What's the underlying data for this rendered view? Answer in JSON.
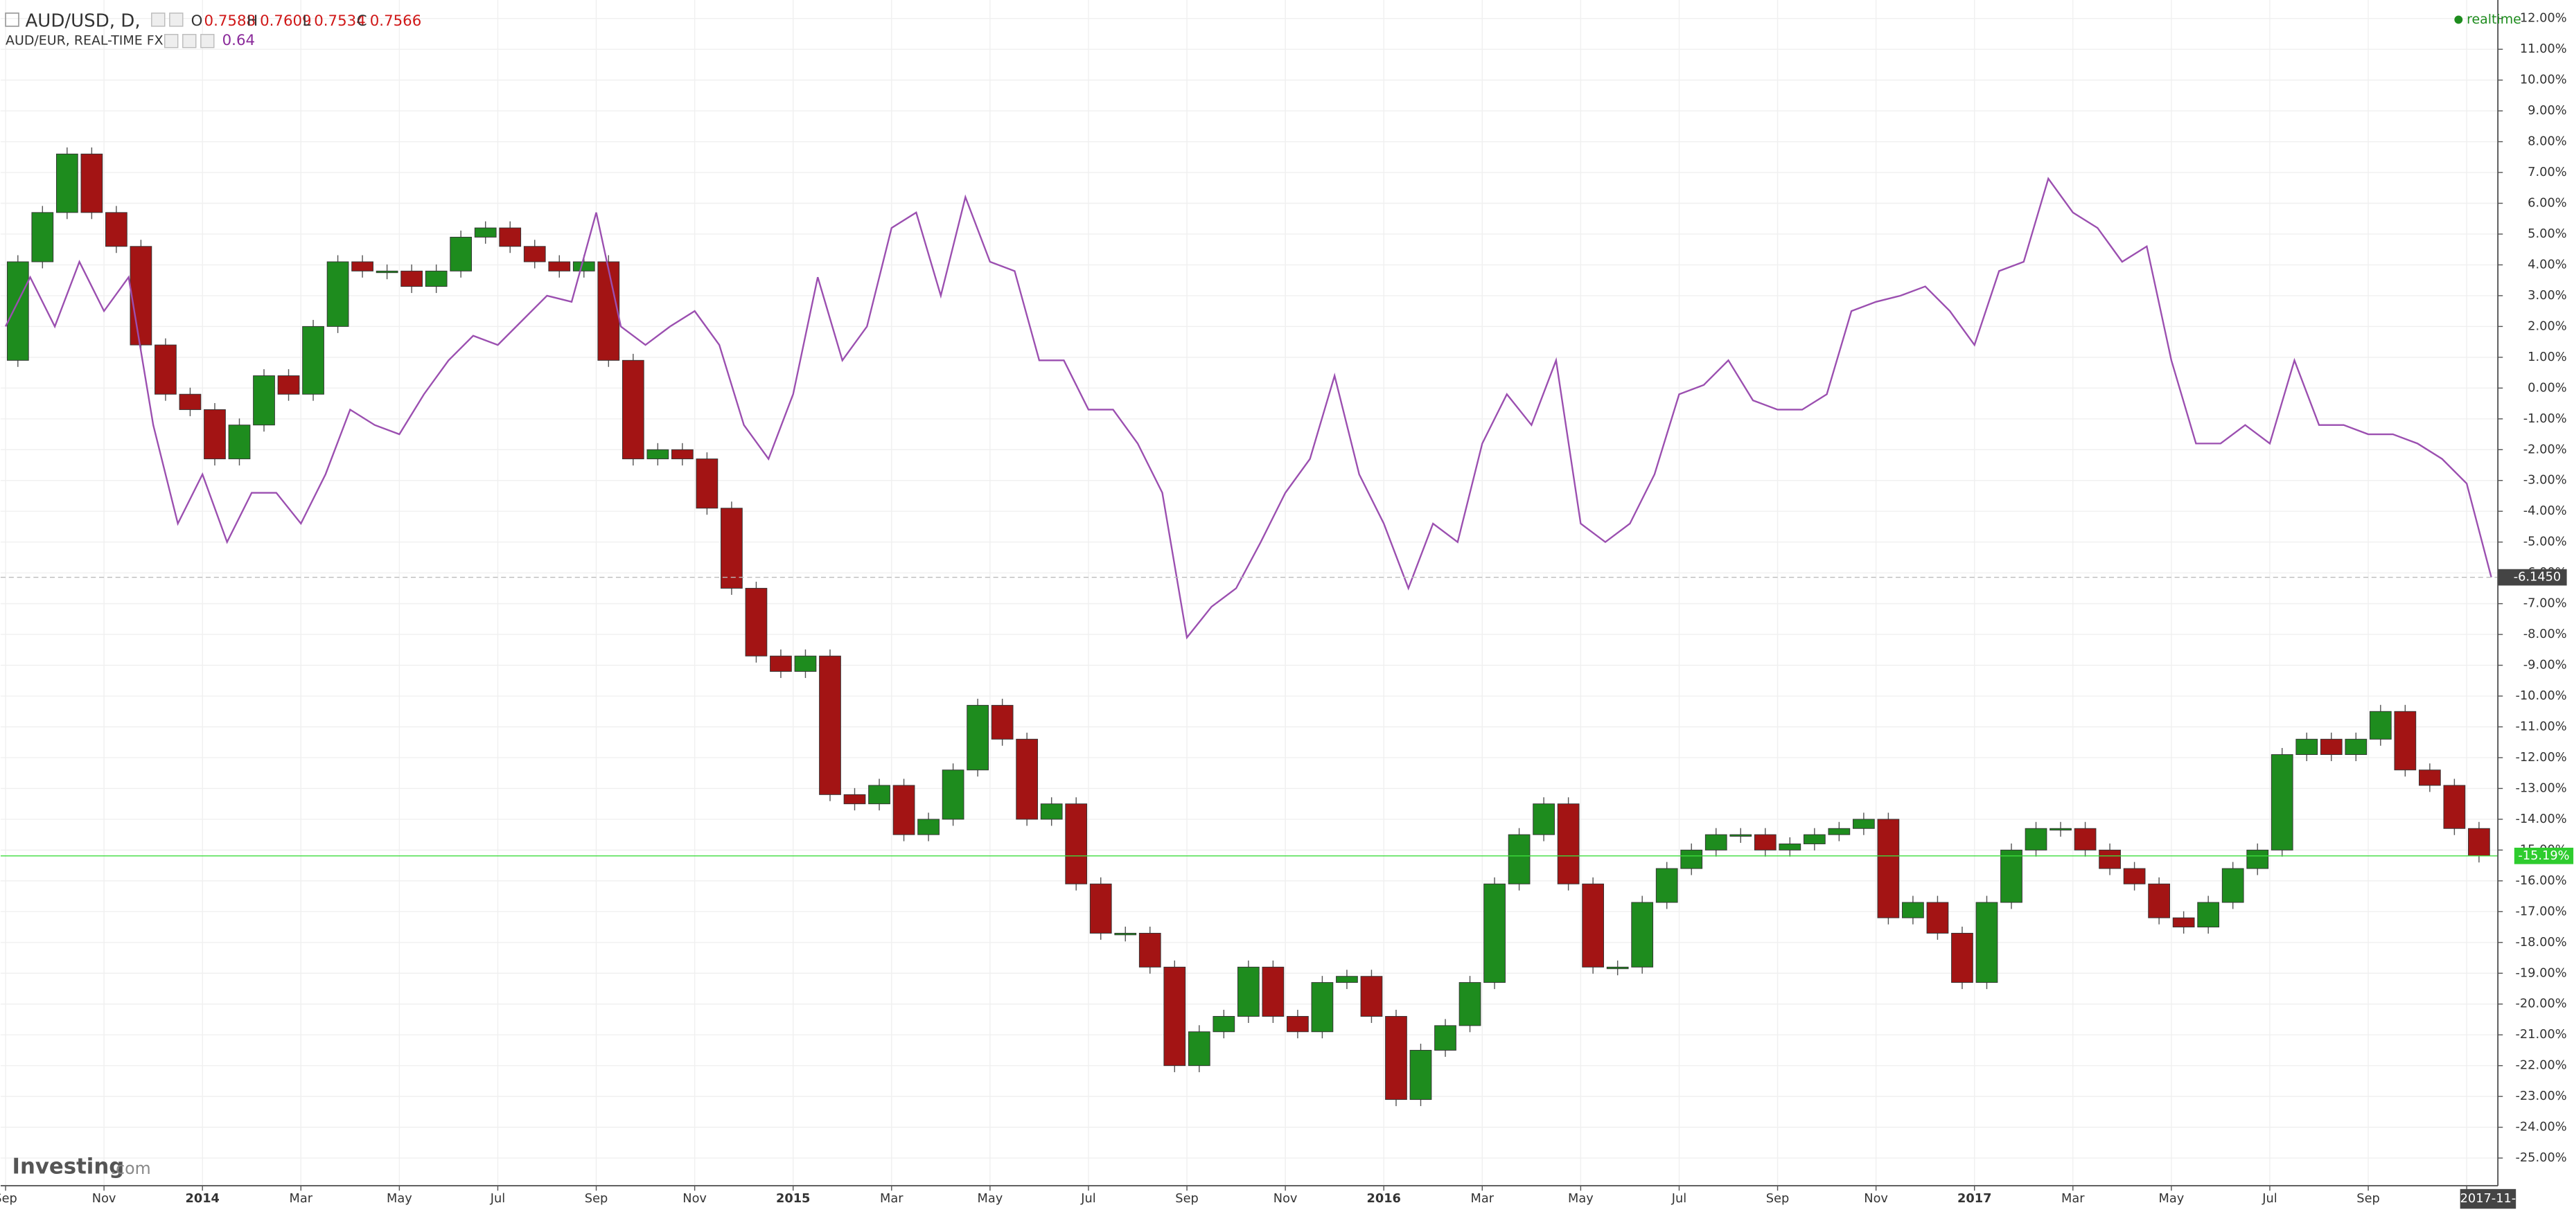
{
  "chart_data": {
    "type": "comparison",
    "header": {
      "symbol": "AUD/USD, D,",
      "o_label": "O",
      "o": 0.7588,
      "h_label": "H",
      "h": 0.7609,
      "l_label": "L",
      "l": 0.7534,
      "c_label": "C",
      "c": 0.7566,
      "compare": "AUD/EUR, REAL-TIME FX",
      "compare_value": 0.64,
      "status": "realtime",
      "logo": "Investing",
      "logo_suffix": ".com"
    },
    "categories": [
      "Sep",
      null,
      null,
      null,
      "Nov",
      null,
      null,
      null,
      "2014",
      null,
      null,
      null,
      "Mar",
      null,
      null,
      null,
      "May",
      null,
      null,
      null,
      "Jul",
      null,
      null,
      null,
      "Sep",
      null,
      null,
      null,
      "Nov",
      null,
      null,
      null,
      "2015",
      null,
      null,
      null,
      "Mar",
      null,
      null,
      null,
      "May",
      null,
      null,
      null,
      "Jul",
      null,
      null,
      null,
      "Sep",
      null,
      null,
      null,
      "Nov",
      null,
      null,
      null,
      "2016",
      null,
      null,
      null,
      "Mar",
      null,
      null,
      null,
      "May",
      null,
      null,
      null,
      "Jul",
      null,
      null,
      null,
      "Sep",
      null,
      null,
      null,
      "Nov",
      null,
      null,
      null,
      "2017",
      null,
      null,
      null,
      "Mar",
      null,
      null,
      null,
      "May",
      null,
      null,
      null,
      "Jul",
      null,
      null,
      null,
      "Sep",
      null,
      null,
      null,
      "2017-11-",
      null
    ],
    "series": [
      {
        "name": "AUD/USD",
        "color": "#1e8c1e",
        "down_color": "#a31414",
        "value_label": "-15.19%",
        "values": [
          0.9,
          4.1,
          5.7,
          7.6,
          5.7,
          4.6,
          1.4,
          -0.2,
          -0.7,
          -2.3,
          -1.2,
          0.4,
          -0.2,
          2.0,
          4.1,
          3.8,
          3.8,
          3.3,
          3.8,
          4.9,
          5.2,
          4.6,
          4.1,
          3.8,
          4.1,
          0.9,
          -2.3,
          -2.0,
          -2.3,
          -3.9,
          -6.5,
          -8.7,
          -9.2,
          -8.7,
          -13.2,
          -13.5,
          -12.9,
          -14.5,
          -14.0,
          -12.4,
          -10.3,
          -11.4,
          -14.0,
          -13.5,
          -16.1,
          -17.7,
          -17.7,
          -18.8,
          -22.0,
          -20.9,
          -20.4,
          -18.8,
          -20.4,
          -20.9,
          -19.3,
          -19.1,
          -20.4,
          -23.1,
          -21.5,
          -20.7,
          -19.3,
          -16.1,
          -14.5,
          -13.5,
          -16.1,
          -18.8,
          -18.8,
          -16.7,
          -15.6,
          -15.0,
          -14.5,
          -14.5,
          -15.0,
          -14.8,
          -14.5,
          -14.3,
          -14.0,
          -17.2,
          -16.7,
          -17.7,
          -19.3,
          -16.7,
          -15.0,
          -14.3,
          -14.3,
          -15.0,
          -15.6,
          -16.1,
          -17.2,
          -17.5,
          -16.7,
          -15.6,
          -15.0,
          -11.9,
          -11.4,
          -11.9,
          -11.4,
          -10.5,
          -12.4,
          -12.9,
          -14.3,
          -15.19
        ]
      },
      {
        "name": "AUD/EUR",
        "color": "#9b4fb0",
        "value_label": "-6.1450",
        "values": [
          2.0,
          3.6,
          2.0,
          4.1,
          2.5,
          3.6,
          -1.2,
          -4.4,
          -2.8,
          -5.0,
          -3.4,
          -3.4,
          -4.4,
          -2.8,
          -0.7,
          -1.2,
          -1.5,
          -0.2,
          0.9,
          1.7,
          1.4,
          2.2,
          3.0,
          2.8,
          5.7,
          2.0,
          1.4,
          2.0,
          2.5,
          1.4,
          -1.2,
          -2.3,
          -0.2,
          3.6,
          0.9,
          2.0,
          5.2,
          5.7,
          3.0,
          6.2,
          4.1,
          3.8,
          0.9,
          0.9,
          -0.7,
          -0.7,
          -1.8,
          -3.4,
          -8.1,
          -7.1,
          -6.5,
          -5.0,
          -3.4,
          -2.3,
          0.4,
          -2.8,
          -4.4,
          -6.5,
          -4.4,
          -5.0,
          -1.8,
          -0.2,
          -1.2,
          0.9,
          -4.4,
          -5.0,
          -4.4,
          -2.8,
          -0.2,
          0.1,
          0.9,
          -0.4,
          -0.7,
          -0.7,
          -0.2,
          2.5,
          2.8,
          3.0,
          3.3,
          2.5,
          1.4,
          3.8,
          4.1,
          6.8,
          5.7,
          5.2,
          4.1,
          4.6,
          0.9,
          -1.8,
          -1.8,
          -1.2,
          -1.8,
          0.9,
          -1.2,
          -1.2,
          -1.5,
          -1.5,
          -1.8,
          -2.3,
          -3.1,
          -6.145
        ]
      }
    ],
    "ylim": [
      -25.9,
      12.6
    ],
    "yticks": [
      {
        "value": 12,
        "label": "12.00%"
      },
      {
        "value": 11,
        "label": "11.00%"
      },
      {
        "value": 10,
        "label": "10.00%"
      },
      {
        "value": 9,
        "label": "9.00%"
      },
      {
        "value": 8,
        "label": "8.00%"
      },
      {
        "value": 7,
        "label": "7.00%"
      },
      {
        "value": 6,
        "label": "6.00%"
      },
      {
        "value": 5,
        "label": "5.00%"
      },
      {
        "value": 4,
        "label": "4.00%"
      },
      {
        "value": 3,
        "label": "3.00%"
      },
      {
        "value": 2,
        "label": "2.00%"
      },
      {
        "value": 1,
        "label": "1.00%"
      },
      {
        "value": 0,
        "label": "0.00%"
      },
      {
        "value": -1,
        "label": "-1.00%"
      },
      {
        "value": -2,
        "label": "-2.00%"
      },
      {
        "value": -3,
        "label": "-3.00%"
      },
      {
        "value": -4,
        "label": "-4.00%"
      },
      {
        "value": -5,
        "label": "-5.00%"
      },
      {
        "value": -6,
        "label": "-6.00%"
      },
      {
        "value": -7,
        "label": "-7.00%"
      },
      {
        "value": -8,
        "label": "-8.00%"
      },
      {
        "value": -9,
        "label": "-9.00%"
      },
      {
        "value": -10,
        "label": "-10.00%"
      },
      {
        "value": -11,
        "label": "-11.00%"
      },
      {
        "value": -12,
        "label": "-12.00%"
      },
      {
        "value": -13,
        "label": "-13.00%"
      },
      {
        "value": -14,
        "label": "-14.00%"
      },
      {
        "value": -15,
        "label": "-15.00%"
      },
      {
        "value": -16,
        "label": "-16.00%"
      },
      {
        "value": -17,
        "label": "-17.00%"
      },
      {
        "value": -18,
        "label": "-18.00%"
      },
      {
        "value": -19,
        "label": "-19.00%"
      },
      {
        "value": -20,
        "label": "-20.00%"
      },
      {
        "value": -21,
        "label": "-21.00%"
      },
      {
        "value": -22,
        "label": "-22.00%"
      },
      {
        "value": -23,
        "label": "-23.00%"
      },
      {
        "value": -24,
        "label": "-24.00%"
      },
      {
        "value": -25,
        "label": "-25.00%"
      }
    ],
    "grid": true
  }
}
